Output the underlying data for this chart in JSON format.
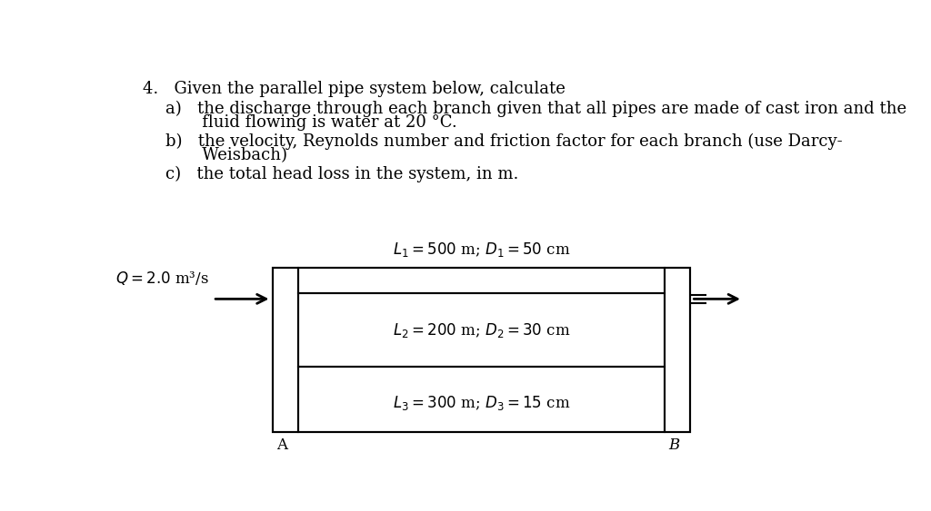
{
  "background_color": "#ffffff",
  "text_color": "#000000",
  "line_color": "#000000",
  "title_text": "4.   Given the parallel pipe system below, calculate",
  "sub_a_line1": "a)   the discharge through each branch given that all pipes are made of cast iron and the",
  "sub_a_line2": "       fluid flowing is water at 20 °C.",
  "sub_b_line1": "b)   the velocity, Reynolds number and friction factor for each branch (use Darcy-",
  "sub_b_line2": "       Weisbach)",
  "sub_c": "c)   the total head loss in the system, in m.",
  "pipe1_label": "$L_1 = 500$ m; $D_1 = 50$ cm",
  "pipe2_label": "$L_2 = 200$ m; $D_2 = 30$ cm",
  "pipe3_label": "$L_3 = 300$ m; $D_3 = 15$ cm",
  "Q_label": "$Q = 2.0$ m³/s",
  "A_label": "A",
  "B_label": "B",
  "fontsize_text": 13,
  "fontsize_diagram": 12,
  "lw": 1.5
}
